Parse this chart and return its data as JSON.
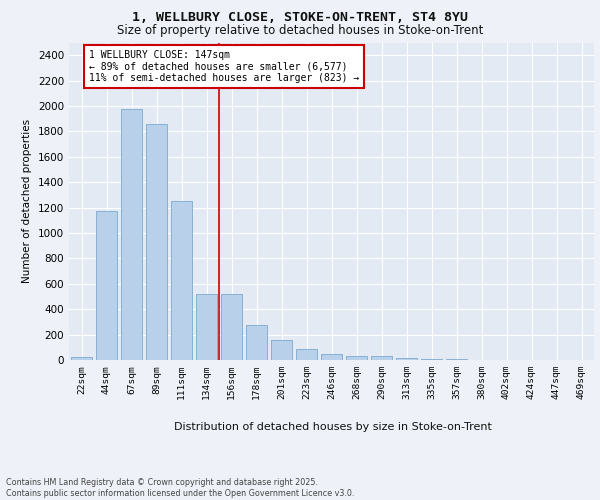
{
  "title_line1": "1, WELLBURY CLOSE, STOKE-ON-TRENT, ST4 8YU",
  "title_line2": "Size of property relative to detached houses in Stoke-on-Trent",
  "xlabel": "Distribution of detached houses by size in Stoke-on-Trent",
  "ylabel": "Number of detached properties",
  "categories": [
    "22sqm",
    "44sqm",
    "67sqm",
    "89sqm",
    "111sqm",
    "134sqm",
    "156sqm",
    "178sqm",
    "201sqm",
    "223sqm",
    "246sqm",
    "268sqm",
    "290sqm",
    "313sqm",
    "335sqm",
    "357sqm",
    "380sqm",
    "402sqm",
    "424sqm",
    "447sqm",
    "469sqm"
  ],
  "values": [
    25,
    1175,
    1975,
    1860,
    1250,
    520,
    520,
    275,
    155,
    85,
    45,
    35,
    30,
    12,
    5,
    5,
    3,
    2,
    1,
    1,
    1
  ],
  "bar_color": "#b8d0ea",
  "bar_edge_color": "#6a9fc8",
  "annotation_text": "1 WELLBURY CLOSE: 147sqm\n← 89% of detached houses are smaller (6,577)\n11% of semi-detached houses are larger (823) →",
  "annotation_box_color": "#ffffff",
  "annotation_box_edge": "#cc0000",
  "vline_color": "#cc0000",
  "vline_x_index": 5.5,
  "ylim": [
    0,
    2500
  ],
  "yticks": [
    0,
    200,
    400,
    600,
    800,
    1000,
    1200,
    1400,
    1600,
    1800,
    2000,
    2200,
    2400
  ],
  "bg_color": "#eef2f8",
  "plot_bg_color": "#e4eaf4",
  "grid_color": "#ffffff",
  "footnote": "Contains HM Land Registry data © Crown copyright and database right 2025.\nContains public sector information licensed under the Open Government Licence v3.0."
}
